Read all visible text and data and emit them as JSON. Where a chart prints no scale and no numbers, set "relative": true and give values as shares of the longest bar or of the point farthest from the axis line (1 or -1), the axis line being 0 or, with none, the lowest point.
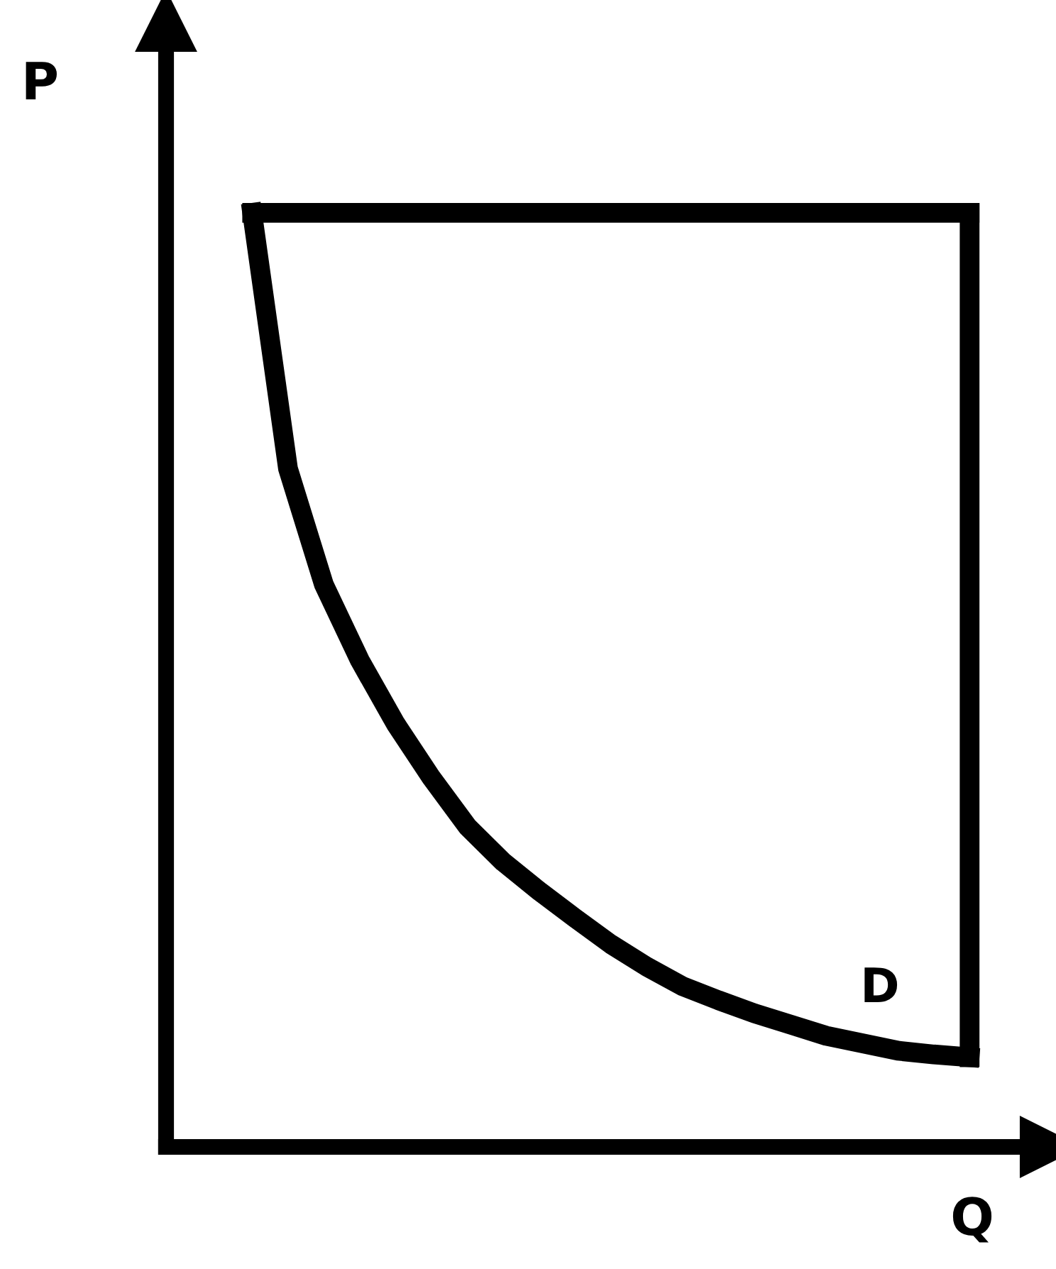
{
  "chart_data": {
    "type": "line",
    "relative": true,
    "xlabel": "Q",
    "ylabel": "P",
    "annotations": [
      "D"
    ],
    "line_style": "solid",
    "categories": [
      null,
      null,
      null,
      null,
      null,
      null,
      null,
      null,
      null,
      null,
      null,
      null,
      null,
      null,
      null,
      null,
      null,
      null,
      null,
      null,
      null
    ],
    "series": [
      {
        "color": "#000000",
        "values": [
          1.0,
          0.726,
          0.602,
          0.521,
          0.453,
          0.395,
          0.343,
          0.305,
          0.274,
          0.245,
          0.217,
          0.193,
          0.172,
          0.157,
          0.143,
          0.131,
          0.119,
          0.111,
          0.103,
          0.099,
          0.096
        ]
      },
      {
        "color": "#000000",
        "values": [
          1,
          1,
          1,
          1,
          1,
          1,
          1,
          1,
          1,
          1,
          1,
          1,
          1,
          1,
          1,
          1,
          1,
          1,
          1,
          1,
          1
        ]
      }
    ]
  }
}
